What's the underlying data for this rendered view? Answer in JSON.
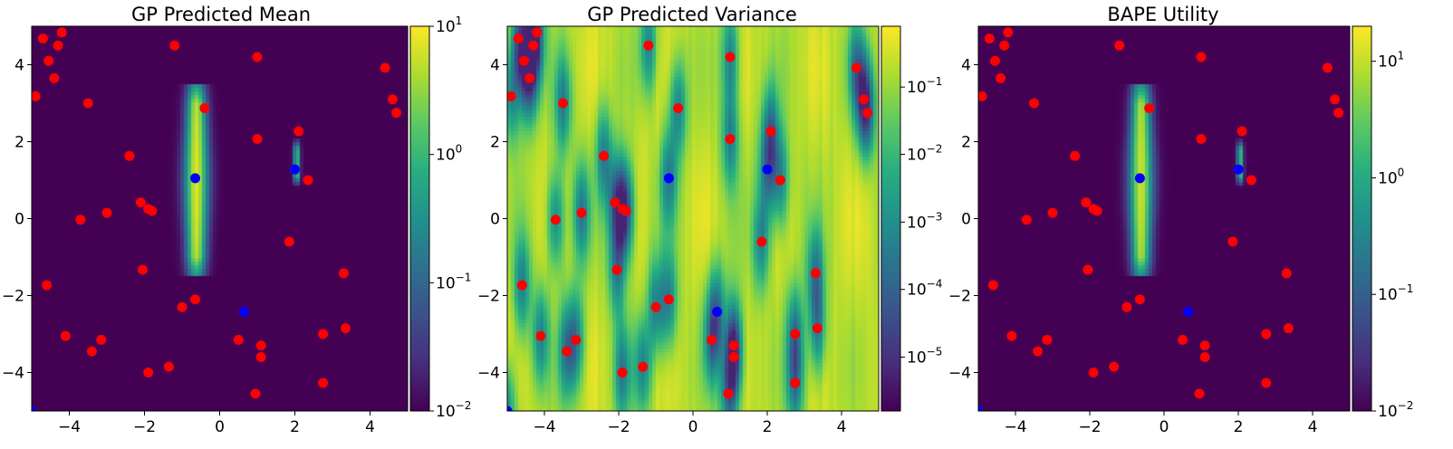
{
  "chart_data": [
    {
      "type": "heatmap",
      "title": "GP Predicted Mean",
      "colormap": "viridis",
      "scale": "log",
      "xlim": [
        -5,
        5
      ],
      "ylim": [
        -5,
        5
      ],
      "xticks": [
        -4,
        -2,
        0,
        2,
        4
      ],
      "yticks": [
        -4,
        -2,
        0,
        2,
        4
      ],
      "background_level": 0.0,
      "field": "mean",
      "colorbar": {
        "min_exp": -2,
        "max_exp": 1,
        "ticks": [
          {
            "base": "10",
            "exp": "1",
            "level": 1.0
          },
          {
            "base": "10",
            "exp": "0",
            "level": 0.6667
          },
          {
            "base": "10",
            "exp": "−1",
            "level": 0.3333
          },
          {
            "base": "10",
            "exp": "−2",
            "level": 0.0
          }
        ]
      }
    },
    {
      "type": "heatmap",
      "title": "GP Predicted Variance",
      "colormap": "viridis",
      "scale": "log",
      "xlim": [
        -5,
        5
      ],
      "ylim": [
        -5,
        5
      ],
      "xticks": [
        -4,
        -2,
        0,
        2,
        4
      ],
      "yticks": [
        -4,
        -2,
        0,
        2,
        4
      ],
      "field": "variance",
      "colorbar": {
        "min_exp": -5.8,
        "max_exp": -0.1,
        "ticks": [
          {
            "base": "10",
            "exp": "−1",
            "level": 0.842
          },
          {
            "base": "10",
            "exp": "−2",
            "level": 0.667
          },
          {
            "base": "10",
            "exp": "−3",
            "level": 0.491
          },
          {
            "base": "10",
            "exp": "−4",
            "level": 0.316
          },
          {
            "base": "10",
            "exp": "−5",
            "level": 0.14
          }
        ]
      }
    },
    {
      "type": "heatmap",
      "title": "BAPE Utility",
      "colormap": "viridis",
      "scale": "log",
      "xlim": [
        -5,
        5
      ],
      "ylim": [
        -5,
        5
      ],
      "xticks": [
        -4,
        -2,
        0,
        2,
        4
      ],
      "yticks": [
        -4,
        -2,
        0,
        2,
        4
      ],
      "field": "utility",
      "colorbar": {
        "min_exp": -2,
        "max_exp": 1.3,
        "ticks": [
          {
            "base": "10",
            "exp": "1",
            "level": 0.909
          },
          {
            "base": "10",
            "exp": "0",
            "level": 0.606
          },
          {
            "base": "10",
            "exp": "−1",
            "level": 0.303
          },
          {
            "base": "10",
            "exp": "−2",
            "level": 0.0
          }
        ]
      }
    }
  ],
  "points": {
    "red_color": "#ff0000",
    "blue_color": "#0000ff",
    "red": [
      [
        -4.9,
        3.18
      ],
      [
        -4.7,
        4.68
      ],
      [
        -4.55,
        4.1
      ],
      [
        -4.3,
        4.5
      ],
      [
        -4.2,
        4.84
      ],
      [
        -4.4,
        3.65
      ],
      [
        -3.5,
        3.0
      ],
      [
        -1.2,
        4.5
      ],
      [
        1.0,
        4.2
      ],
      [
        4.4,
        3.92
      ],
      [
        4.6,
        3.1
      ],
      [
        4.7,
        2.75
      ],
      [
        -0.4,
        2.87
      ],
      [
        2.1,
        2.27
      ],
      [
        1.0,
        2.07
      ],
      [
        -2.4,
        1.63
      ],
      [
        2.35,
        1.0
      ],
      [
        -3.7,
        -0.03
      ],
      [
        -3.0,
        0.15
      ],
      [
        -2.1,
        0.42
      ],
      [
        -1.9,
        0.25
      ],
      [
        -1.8,
        0.2
      ],
      [
        1.85,
        -0.6
      ],
      [
        -2.05,
        -1.33
      ],
      [
        3.3,
        -1.42
      ],
      [
        -4.6,
        -1.73
      ],
      [
        -1.0,
        -2.3
      ],
      [
        -0.65,
        -2.1
      ],
      [
        -4.1,
        -3.05
      ],
      [
        -3.4,
        -3.45
      ],
      [
        -3.15,
        -3.15
      ],
      [
        0.5,
        -3.15
      ],
      [
        1.1,
        -3.3
      ],
      [
        2.75,
        -3.0
      ],
      [
        3.35,
        -2.85
      ],
      [
        -1.35,
        -3.85
      ],
      [
        -1.9,
        -4.0
      ],
      [
        1.1,
        -3.6
      ],
      [
        2.75,
        -4.27
      ],
      [
        0.95,
        -4.55
      ]
    ],
    "blue": [
      [
        -0.65,
        1.05
      ],
      [
        2.0,
        1.28
      ],
      [
        0.65,
        -2.42
      ],
      [
        -5.0,
        -5.0
      ]
    ]
  }
}
